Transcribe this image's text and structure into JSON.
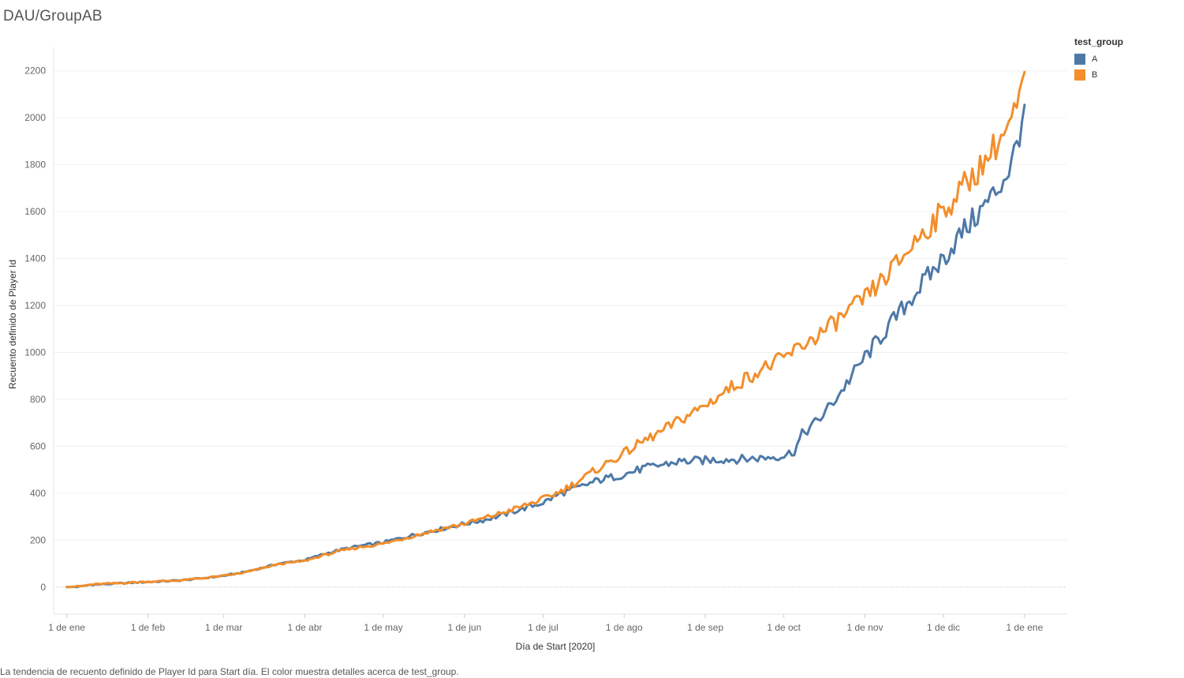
{
  "chart_data": {
    "type": "line",
    "title": "DAU/GroupAB",
    "xlabel": "Día de Start [2020]",
    "ylabel": "Recuento definido de Player Id",
    "x_ticks": [
      "1 de ene",
      "1 de feb",
      "1 de mar",
      "1 de abr",
      "1 de may",
      "1 de jun",
      "1 de jul",
      "1 de ago",
      "1 de sep",
      "1 de oct",
      "1 de nov",
      "1 de dic",
      "1 de ene"
    ],
    "y_ticks": [
      0,
      200,
      400,
      600,
      800,
      1000,
      1200,
      1400,
      1600,
      1800,
      2000,
      2200
    ],
    "ylim": [
      -115,
      2300
    ],
    "xlim": [
      "2019-12-27",
      "2021-01-17"
    ],
    "grid": true,
    "legend_title": "test_group",
    "legend_position": "top-right",
    "caption": "La tendencia de recuento definido de Player Id para Start día.  El color muestra detalles acerca de test_group.",
    "series": [
      {
        "name": "A",
        "color": "#4e79a7",
        "points": [
          [
            "2020-01-01",
            0
          ],
          [
            "2020-01-06",
            2
          ],
          [
            "2020-01-10",
            10
          ],
          [
            "2020-01-15",
            12
          ],
          [
            "2020-01-20",
            15
          ],
          [
            "2020-01-25",
            18
          ],
          [
            "2020-02-01",
            22
          ],
          [
            "2020-02-08",
            25
          ],
          [
            "2020-02-15",
            30
          ],
          [
            "2020-02-22",
            38
          ],
          [
            "2020-03-01",
            48
          ],
          [
            "2020-03-08",
            62
          ],
          [
            "2020-03-15",
            80
          ],
          [
            "2020-03-22",
            100
          ],
          [
            "2020-04-01",
            115
          ],
          [
            "2020-04-08",
            140
          ],
          [
            "2020-04-15",
            160
          ],
          [
            "2020-04-22",
            175
          ],
          [
            "2020-05-01",
            190
          ],
          [
            "2020-05-08",
            210
          ],
          [
            "2020-05-15",
            228
          ],
          [
            "2020-05-22",
            245
          ],
          [
            "2020-06-01",
            270
          ],
          [
            "2020-06-08",
            285
          ],
          [
            "2020-06-15",
            305
          ],
          [
            "2020-06-22",
            330
          ],
          [
            "2020-07-01",
            360
          ],
          [
            "2020-07-08",
            400
          ],
          [
            "2020-07-15",
            425
          ],
          [
            "2020-07-22",
            455
          ],
          [
            "2020-08-01",
            480
          ],
          [
            "2020-08-08",
            505
          ],
          [
            "2020-08-15",
            520
          ],
          [
            "2020-08-22",
            535
          ],
          [
            "2020-09-01",
            540
          ],
          [
            "2020-09-08",
            545
          ],
          [
            "2020-09-15",
            545
          ],
          [
            "2020-09-22",
            550
          ],
          [
            "2020-10-01",
            560
          ],
          [
            "2020-10-05",
            580
          ],
          [
            "2020-10-08",
            650
          ],
          [
            "2020-10-15",
            720
          ],
          [
            "2020-10-22",
            820
          ],
          [
            "2020-11-01",
            980
          ],
          [
            "2020-11-08",
            1080
          ],
          [
            "2020-11-15",
            1180
          ],
          [
            "2020-11-22",
            1280
          ],
          [
            "2020-12-01",
            1400
          ],
          [
            "2020-12-08",
            1510
          ],
          [
            "2020-12-15",
            1600
          ],
          [
            "2020-12-22",
            1700
          ],
          [
            "2020-12-27",
            1800
          ],
          [
            "2020-12-30",
            1940
          ],
          [
            "2021-01-01",
            2055
          ]
        ]
      },
      {
        "name": "B",
        "color": "#f28e2b",
        "points": [
          [
            "2020-01-01",
            0
          ],
          [
            "2020-01-06",
            3
          ],
          [
            "2020-01-10",
            10
          ],
          [
            "2020-01-15",
            14
          ],
          [
            "2020-01-20",
            16
          ],
          [
            "2020-01-25",
            19
          ],
          [
            "2020-02-01",
            23
          ],
          [
            "2020-02-08",
            26
          ],
          [
            "2020-02-15",
            30
          ],
          [
            "2020-02-22",
            38
          ],
          [
            "2020-03-01",
            48
          ],
          [
            "2020-03-08",
            60
          ],
          [
            "2020-03-15",
            78
          ],
          [
            "2020-03-22",
            98
          ],
          [
            "2020-04-01",
            112
          ],
          [
            "2020-04-08",
            135
          ],
          [
            "2020-04-15",
            155
          ],
          [
            "2020-04-22",
            170
          ],
          [
            "2020-05-01",
            185
          ],
          [
            "2020-05-08",
            205
          ],
          [
            "2020-05-15",
            225
          ],
          [
            "2020-05-22",
            245
          ],
          [
            "2020-06-01",
            270
          ],
          [
            "2020-06-08",
            292
          ],
          [
            "2020-06-15",
            315
          ],
          [
            "2020-06-22",
            340
          ],
          [
            "2020-07-01",
            375
          ],
          [
            "2020-07-08",
            410
          ],
          [
            "2020-07-15",
            455
          ],
          [
            "2020-07-22",
            505
          ],
          [
            "2020-08-01",
            570
          ],
          [
            "2020-08-08",
            620
          ],
          [
            "2020-08-15",
            660
          ],
          [
            "2020-08-22",
            710
          ],
          [
            "2020-09-01",
            775
          ],
          [
            "2020-09-08",
            830
          ],
          [
            "2020-09-15",
            880
          ],
          [
            "2020-09-22",
            925
          ],
          [
            "2020-10-01",
            975
          ],
          [
            "2020-10-08",
            1030
          ],
          [
            "2020-10-15",
            1080
          ],
          [
            "2020-10-22",
            1140
          ],
          [
            "2020-11-01",
            1230
          ],
          [
            "2020-11-08",
            1310
          ],
          [
            "2020-11-15",
            1400
          ],
          [
            "2020-11-22",
            1500
          ],
          [
            "2020-12-01",
            1600
          ],
          [
            "2020-12-08",
            1700
          ],
          [
            "2020-12-15",
            1790
          ],
          [
            "2020-12-22",
            1900
          ],
          [
            "2020-12-27",
            1980
          ],
          [
            "2020-12-30",
            2070
          ],
          [
            "2021-01-01",
            2195
          ]
        ]
      }
    ]
  }
}
